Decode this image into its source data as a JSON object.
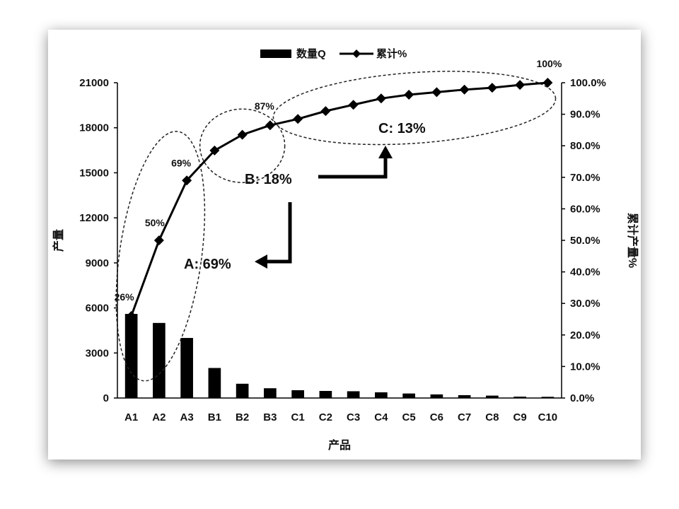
{
  "chart_data": {
    "type": "bar+line",
    "categories": [
      "A1",
      "A2",
      "A3",
      "B1",
      "B2",
      "B3",
      "C1",
      "C2",
      "C3",
      "C4",
      "C5",
      "C6",
      "C7",
      "C8",
      "C9",
      "C10"
    ],
    "series": [
      {
        "name": "数量Q",
        "type": "bar",
        "axis": "left",
        "values": [
          5600,
          5000,
          4000,
          2000,
          950,
          650,
          520,
          470,
          450,
          380,
          300,
          240,
          190,
          160,
          90,
          80
        ]
      },
      {
        "name": "累计%",
        "type": "line",
        "axis": "right",
        "values": [
          26,
          50,
          69,
          78.5,
          83.5,
          86.5,
          88.5,
          91,
          93,
          95,
          96.2,
          97,
          97.8,
          98.4,
          99.3,
          100
        ]
      }
    ],
    "point_labels": [
      {
        "index": 0,
        "text": "26%"
      },
      {
        "index": 1,
        "text": "50%"
      },
      {
        "index": 2,
        "text": "69%"
      },
      {
        "index": 5,
        "text": "87%"
      },
      {
        "index": 15,
        "text": "100%"
      }
    ],
    "annotations": {
      "a": "A: 69%",
      "b": "B: 18%",
      "c": "C: 13%"
    },
    "xlabel": "产品",
    "ylabel_left": "产量",
    "ylabel_right": "累计产量%",
    "ylim_left": [
      0,
      21000
    ],
    "yticks_left": [
      "0",
      "3000",
      "6000",
      "9000",
      "12000",
      "15000",
      "18000",
      "21000"
    ],
    "ylim_right": [
      0,
      100
    ],
    "yticks_right": [
      "0.0%",
      "10.0%",
      "20.0%",
      "30.0%",
      "40.0%",
      "50.0%",
      "60.0%",
      "70.0%",
      "80.0%",
      "90.0%",
      "100.0%"
    ],
    "legend_position": "top",
    "grid": false,
    "colors": {
      "bars": "#000000",
      "line": "#000000"
    }
  }
}
